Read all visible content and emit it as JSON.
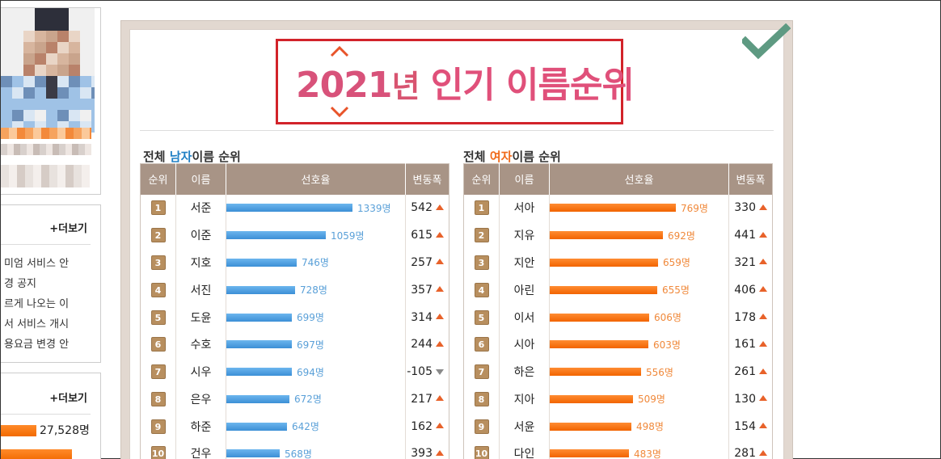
{
  "sidebar": {
    "notices": {
      "more_label": "+더보기",
      "items": [
        "미엄 서비스 안",
        "경 공지",
        "르게 나오는 이",
        "서 서비스 개시",
        "용요금 변경 안"
      ]
    },
    "stats": {
      "more_label": "+더보기",
      "value": "27,528명"
    }
  },
  "title": {
    "year": "2021",
    "nyeon": "년",
    "rest": " 인기 이름순위"
  },
  "male": {
    "heading_pre": "전체 ",
    "heading_hl": "남자",
    "heading_post": "이름 순위",
    "columns": [
      "순위",
      "이름",
      "선호율",
      "변동폭"
    ],
    "rows": [
      {
        "rank": "1",
        "name": "서준",
        "count": 1339,
        "count_label": "1339명",
        "change": "542",
        "dir": "up"
      },
      {
        "rank": "2",
        "name": "이준",
        "count": 1059,
        "count_label": "1059명",
        "change": "615",
        "dir": "up"
      },
      {
        "rank": "3",
        "name": "지호",
        "count": 746,
        "count_label": "746명",
        "change": "257",
        "dir": "up"
      },
      {
        "rank": "4",
        "name": "서진",
        "count": 728,
        "count_label": "728명",
        "change": "357",
        "dir": "up"
      },
      {
        "rank": "5",
        "name": "도윤",
        "count": 699,
        "count_label": "699명",
        "change": "314",
        "dir": "up"
      },
      {
        "rank": "6",
        "name": "수호",
        "count": 697,
        "count_label": "697명",
        "change": "244",
        "dir": "up"
      },
      {
        "rank": "7",
        "name": "시우",
        "count": 694,
        "count_label": "694명",
        "change": "-105",
        "dir": "down"
      },
      {
        "rank": "8",
        "name": "은우",
        "count": 672,
        "count_label": "672명",
        "change": "217",
        "dir": "up"
      },
      {
        "rank": "9",
        "name": "하준",
        "count": 642,
        "count_label": "642명",
        "change": "162",
        "dir": "up"
      },
      {
        "rank": "10",
        "name": "건우",
        "count": 568,
        "count_label": "568명",
        "change": "393",
        "dir": "up"
      }
    ]
  },
  "female": {
    "heading_pre": "전체 ",
    "heading_hl": "여자",
    "heading_post": "이름 순위",
    "columns": [
      "순위",
      "이름",
      "선호율",
      "변동폭"
    ],
    "rows": [
      {
        "rank": "1",
        "name": "서아",
        "count": 769,
        "count_label": "769명",
        "change": "330",
        "dir": "up"
      },
      {
        "rank": "2",
        "name": "지유",
        "count": 692,
        "count_label": "692명",
        "change": "441",
        "dir": "up"
      },
      {
        "rank": "3",
        "name": "지안",
        "count": 659,
        "count_label": "659명",
        "change": "321",
        "dir": "up"
      },
      {
        "rank": "4",
        "name": "아린",
        "count": 655,
        "count_label": "655명",
        "change": "406",
        "dir": "up"
      },
      {
        "rank": "5",
        "name": "이서",
        "count": 606,
        "count_label": "606명",
        "change": "178",
        "dir": "up"
      },
      {
        "rank": "6",
        "name": "시아",
        "count": 603,
        "count_label": "603명",
        "change": "161",
        "dir": "up"
      },
      {
        "rank": "7",
        "name": "하은",
        "count": 556,
        "count_label": "556명",
        "change": "261",
        "dir": "up"
      },
      {
        "rank": "8",
        "name": "지아",
        "count": 509,
        "count_label": "509명",
        "change": "130",
        "dir": "up"
      },
      {
        "rank": "9",
        "name": "서윤",
        "count": 498,
        "count_label": "498명",
        "change": "154",
        "dir": "up"
      },
      {
        "rank": "10",
        "name": "다인",
        "count": 483,
        "count_label": "483명",
        "change": "281",
        "dir": "up"
      }
    ]
  },
  "colors": {
    "male_bar": "#3c8fd6",
    "female_bar": "#f26400",
    "header_bg": "#a89486",
    "title_border": "#d2232a"
  }
}
